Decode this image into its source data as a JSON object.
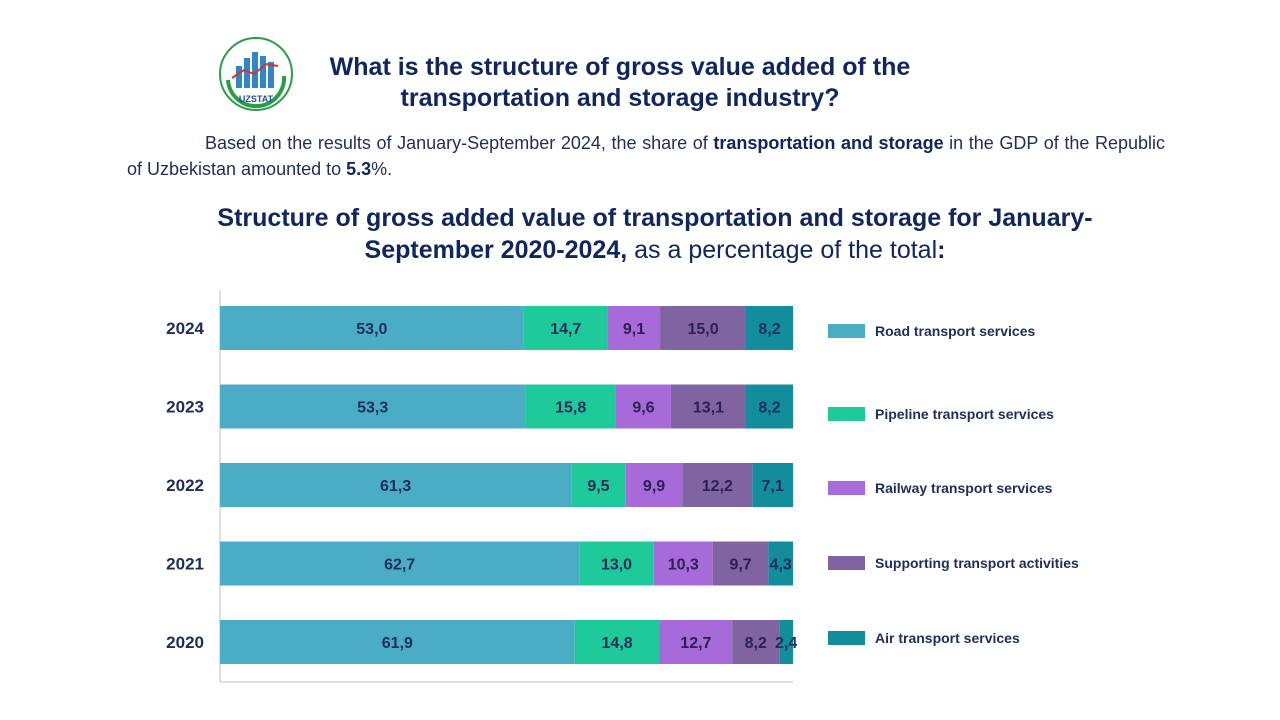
{
  "header": {
    "logo_text": "UZSTAT",
    "title": "What is the structure of gross value added of the transportation and storage industry?"
  },
  "intro": {
    "part1": "Based on the results of January-September 2024, the share of ",
    "bold1": "transportation and storage",
    "part2": " in the GDP of the Republic of Uzbekistan amounted to ",
    "bold2": "5.3",
    "part3": "%."
  },
  "subtitle": {
    "bold": "Structure of gross added value of transportation and storage for January-September 2020-2024,",
    "normal": " as a percentage of the total",
    "end": ":"
  },
  "colors": {
    "road": "#4bacc6",
    "pipeline": "#1ec99a",
    "railway": "#a66bd9",
    "supporting": "#8064a2",
    "air": "#118d9b",
    "text": "#1f2d5c"
  },
  "chart_data": {
    "type": "bar",
    "orientation": "horizontal",
    "stacked": true,
    "title": "Structure of gross added value of transportation and storage for January-September 2020-2024, as a percentage of the total:",
    "categories": [
      "2024",
      "2023",
      "2022",
      "2021",
      "2020"
    ],
    "series": [
      {
        "name": "Road transport services",
        "color": "#4bacc6",
        "values": [
          53.0,
          53.3,
          61.3,
          62.7,
          61.9
        ],
        "labels": [
          "53,0",
          "53,3",
          "61,3",
          "62,7",
          "61,9"
        ]
      },
      {
        "name": "Pipeline transport services",
        "color": "#1ec99a",
        "values": [
          14.7,
          15.8,
          9.5,
          13.0,
          14.8
        ],
        "labels": [
          "14,7",
          "15,8",
          "9,5",
          "13,0",
          "14,8"
        ]
      },
      {
        "name": "Railway transport services",
        "color": "#a66bd9",
        "values": [
          9.1,
          9.6,
          9.9,
          10.3,
          12.7
        ],
        "labels": [
          "9,1",
          "9,6",
          "9,9",
          "10,3",
          "12,7"
        ]
      },
      {
        "name": "Supporting transport activities",
        "color": "#8064a2",
        "values": [
          15.0,
          13.1,
          12.2,
          9.7,
          8.2
        ],
        "labels": [
          "15,0",
          "13,1",
          "12,2",
          "9,7",
          "8,2"
        ]
      },
      {
        "name": "Air transport services",
        "color": "#118d9b",
        "values": [
          8.2,
          8.2,
          7.1,
          4.3,
          2.4
        ],
        "labels": [
          "8,2",
          "8,2",
          "7,1",
          "4,3",
          "2,4"
        ]
      }
    ],
    "xlim": [
      0,
      100
    ],
    "legend_position": "right",
    "grid": false
  }
}
